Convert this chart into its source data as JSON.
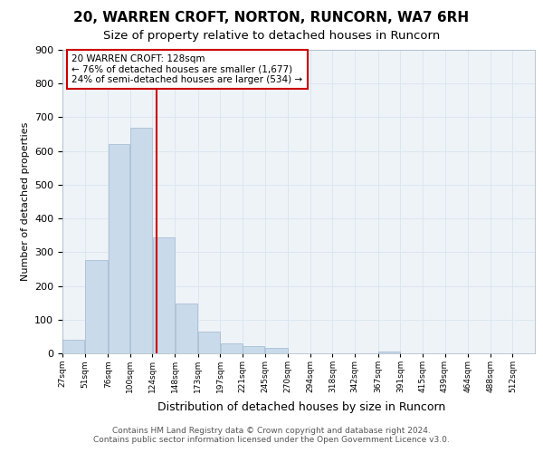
{
  "title_line1": "20, WARREN CROFT, NORTON, RUNCORN, WA7 6RH",
  "title_line2": "Size of property relative to detached houses in Runcorn",
  "xlabel": "Distribution of detached houses by size in Runcorn",
  "ylabel": "Number of detached properties",
  "footer_line1": "Contains HM Land Registry data © Crown copyright and database right 2024.",
  "footer_line2": "Contains public sector information licensed under the Open Government Licence v3.0.",
  "annotation_line1": "20 WARREN CROFT: 128sqm",
  "annotation_line2": "← 76% of detached houses are smaller (1,677)",
  "annotation_line3": "24% of semi-detached houses are larger (534) →",
  "property_size": 128,
  "bar_labels": [
    "27sqm",
    "51sqm",
    "76sqm",
    "100sqm",
    "124sqm",
    "148sqm",
    "173sqm",
    "197sqm",
    "221sqm",
    "245sqm",
    "270sqm",
    "294sqm",
    "318sqm",
    "342sqm",
    "367sqm",
    "391sqm",
    "415sqm",
    "439sqm",
    "464sqm",
    "488sqm",
    "512sqm"
  ],
  "bar_left_edges": [
    27,
    51,
    76,
    100,
    124,
    148,
    173,
    197,
    221,
    245,
    270,
    294,
    318,
    342,
    367,
    391,
    415,
    439,
    464,
    488,
    512
  ],
  "bar_widths": [
    24,
    25,
    24,
    24,
    24,
    25,
    24,
    24,
    24,
    25,
    24,
    24,
    24,
    25,
    24,
    24,
    24,
    25,
    24,
    24,
    24
  ],
  "bar_heights": [
    40,
    278,
    621,
    670,
    345,
    148,
    65,
    30,
    22,
    15,
    0,
    0,
    0,
    0,
    5,
    0,
    0,
    0,
    0,
    0,
    0
  ],
  "bar_color": "#c9daea",
  "bar_edge_color": "#a0b8d0",
  "vline_x": 128,
  "vline_color": "#cc0000",
  "ylim": [
    0,
    900
  ],
  "xlim": [
    27,
    536
  ],
  "yticks": [
    0,
    100,
    200,
    300,
    400,
    500,
    600,
    700,
    800,
    900
  ],
  "grid_color": "#dce6f0",
  "background_color": "#eef3f8",
  "annotation_box_color": "#cc0000",
  "annotation_fill": "#ffffff"
}
